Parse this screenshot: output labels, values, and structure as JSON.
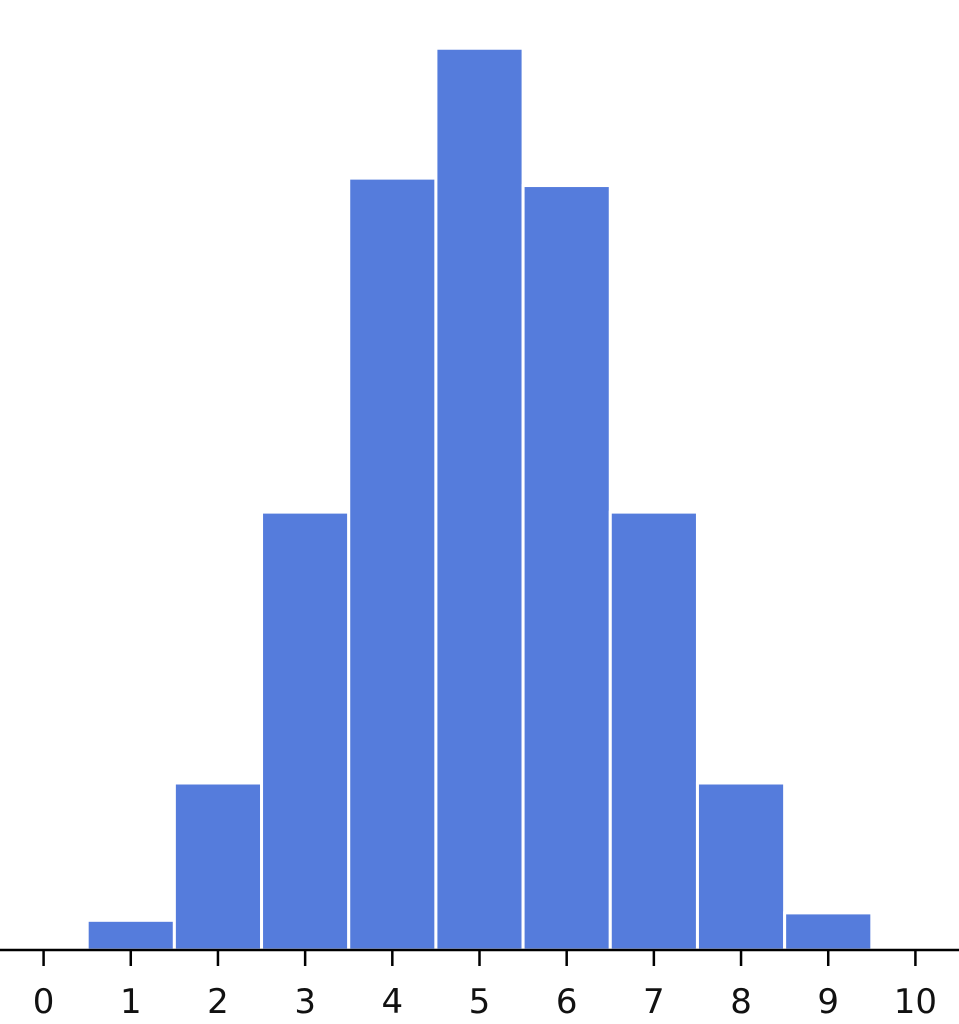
{
  "chart_data": {
    "type": "bar",
    "title": "",
    "xlabel": "",
    "ylabel": "",
    "x_ticks": [
      "0",
      "1",
      "2",
      "3",
      "4",
      "5",
      "6",
      "7",
      "8",
      "9",
      "10"
    ],
    "categories": [
      1,
      2,
      3,
      4,
      5,
      6,
      7,
      8,
      9
    ],
    "values": [
      0.008,
      0.045,
      0.118,
      0.208,
      0.243,
      0.206,
      0.118,
      0.045,
      0.01
    ],
    "xlim": [
      -0.5,
      10.5
    ],
    "ylim": [
      0,
      0.256
    ],
    "grid": false,
    "y_axis_visible": false,
    "bar_color": "#557CDC",
    "edge_color": "#FFFFFF"
  }
}
